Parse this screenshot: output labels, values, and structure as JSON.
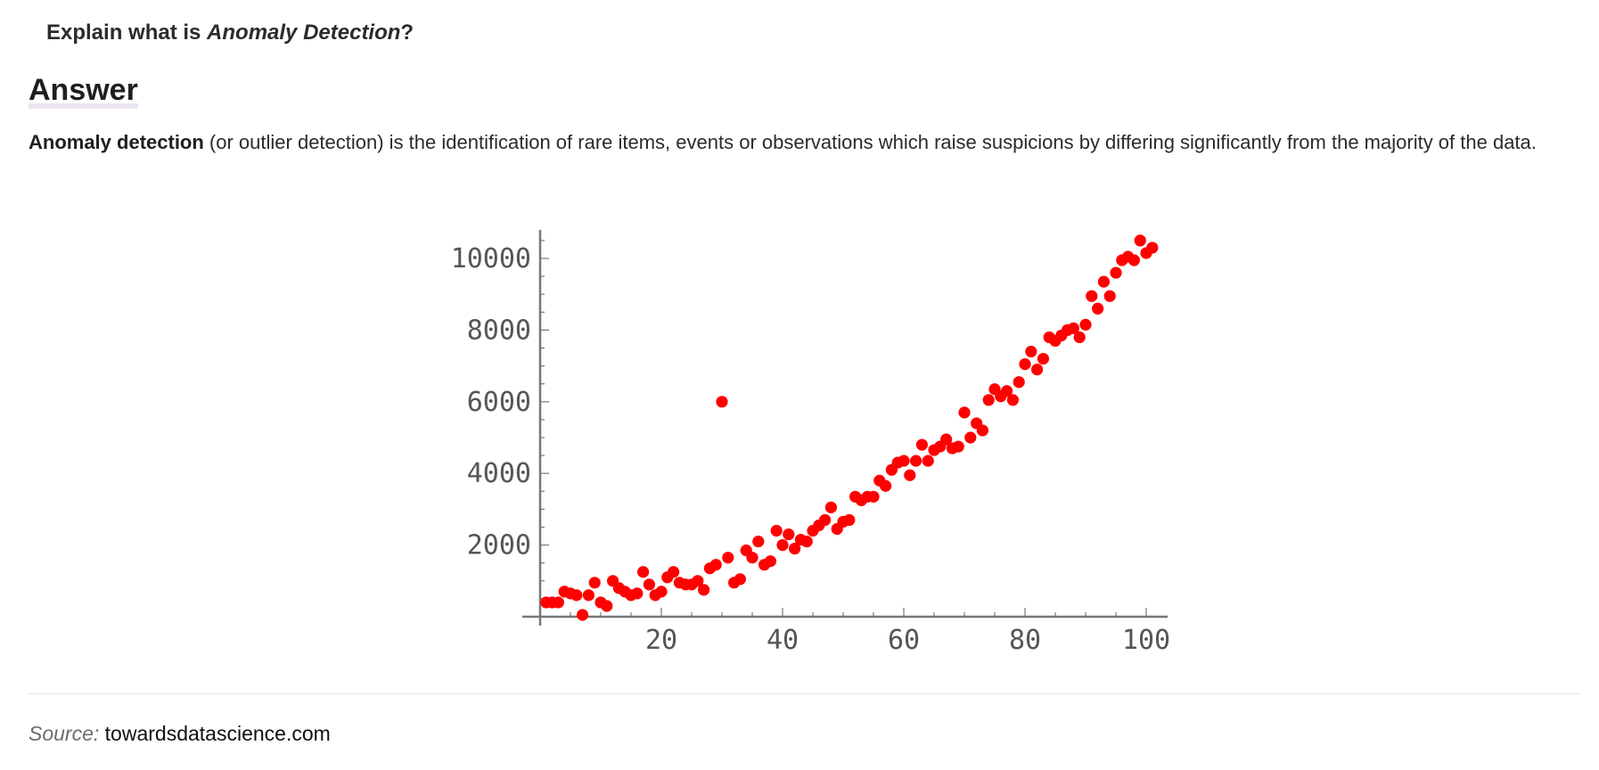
{
  "question": {
    "prefix": "Explain what is ",
    "emphasis": "Anomaly Detection",
    "suffix": "?"
  },
  "answer": {
    "heading": "Answer",
    "term": "Anomaly detection",
    "definition": " (or outlier detection) is the identification of rare items, events or observations which raise suspicions by differing significantly from the majority of the data."
  },
  "source": {
    "label": "Source:",
    "value": "towardsdatascience.com"
  },
  "colors": {
    "points": "#ff0000",
    "axis": "#777777",
    "text": "#2b2b2b",
    "highlight": "#ece4f1"
  },
  "chart_data": {
    "type": "scatter",
    "title": "",
    "xlabel": "",
    "ylabel": "",
    "xlim": [
      0,
      103
    ],
    "ylim": [
      0,
      10800
    ],
    "x_ticks": [
      20,
      40,
      60,
      80,
      100
    ],
    "y_ticks": [
      2000,
      4000,
      6000,
      8000,
      10000
    ],
    "grid": false,
    "legend": "none",
    "series": [
      {
        "points": [
          [
            1,
            400
          ],
          [
            2,
            400
          ],
          [
            3,
            400
          ],
          [
            4,
            700
          ],
          [
            5,
            650
          ],
          [
            6,
            600
          ],
          [
            7,
            50
          ],
          [
            8,
            600
          ],
          [
            9,
            950
          ],
          [
            10,
            400
          ],
          [
            11,
            300
          ],
          [
            12,
            1000
          ],
          [
            13,
            800
          ],
          [
            14,
            700
          ],
          [
            15,
            600
          ],
          [
            16,
            650
          ],
          [
            17,
            1250
          ],
          [
            18,
            900
          ],
          [
            19,
            600
          ],
          [
            20,
            700
          ],
          [
            21,
            1100
          ],
          [
            22,
            1250
          ],
          [
            23,
            950
          ],
          [
            24,
            900
          ],
          [
            25,
            900
          ],
          [
            26,
            1000
          ],
          [
            27,
            750
          ],
          [
            28,
            1350
          ],
          [
            29,
            1450
          ],
          [
            30,
            6000
          ],
          [
            31,
            1650
          ],
          [
            32,
            950
          ],
          [
            33,
            1050
          ],
          [
            34,
            1850
          ],
          [
            35,
            1650
          ],
          [
            36,
            2100
          ],
          [
            37,
            1450
          ],
          [
            38,
            1550
          ],
          [
            39,
            2400
          ],
          [
            40,
            2000
          ],
          [
            41,
            2300
          ],
          [
            42,
            1900
          ],
          [
            43,
            2150
          ],
          [
            44,
            2100
          ],
          [
            45,
            2400
          ],
          [
            46,
            2550
          ],
          [
            47,
            2700
          ],
          [
            48,
            3050
          ],
          [
            49,
            2450
          ],
          [
            50,
            2650
          ],
          [
            51,
            2700
          ],
          [
            52,
            3350
          ],
          [
            53,
            3250
          ],
          [
            54,
            3350
          ],
          [
            55,
            3350
          ],
          [
            56,
            3800
          ],
          [
            57,
            3650
          ],
          [
            58,
            4100
          ],
          [
            59,
            4300
          ],
          [
            60,
            4350
          ],
          [
            61,
            3950
          ],
          [
            62,
            4350
          ],
          [
            63,
            4800
          ],
          [
            64,
            4350
          ],
          [
            65,
            4650
          ],
          [
            66,
            4750
          ],
          [
            67,
            4950
          ],
          [
            68,
            4700
          ],
          [
            69,
            4750
          ],
          [
            70,
            5700
          ],
          [
            71,
            5000
          ],
          [
            72,
            5400
          ],
          [
            73,
            5200
          ],
          [
            74,
            6050
          ],
          [
            75,
            6350
          ],
          [
            76,
            6150
          ],
          [
            77,
            6300
          ],
          [
            78,
            6050
          ],
          [
            79,
            6550
          ],
          [
            80,
            7050
          ],
          [
            81,
            7400
          ],
          [
            82,
            6900
          ],
          [
            83,
            7200
          ],
          [
            84,
            7800
          ],
          [
            85,
            7700
          ],
          [
            86,
            7850
          ],
          [
            87,
            8000
          ],
          [
            88,
            8050
          ],
          [
            89,
            7800
          ],
          [
            90,
            8150
          ],
          [
            91,
            8950
          ],
          [
            92,
            8600
          ],
          [
            93,
            9350
          ],
          [
            94,
            8950
          ],
          [
            95,
            9600
          ],
          [
            96,
            9950
          ],
          [
            97,
            10050
          ],
          [
            98,
            9950
          ],
          [
            99,
            10500
          ],
          [
            100,
            10150
          ],
          [
            101,
            10300
          ]
        ]
      }
    ]
  }
}
